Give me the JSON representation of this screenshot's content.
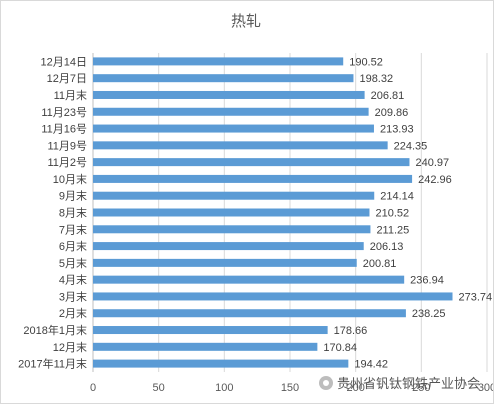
{
  "chart_data": {
    "type": "bar",
    "orientation": "horizontal",
    "title": "热轧",
    "categories": [
      "12月14日",
      "12月7日",
      "11月末",
      "11月23号",
      "11月16号",
      "11月9号",
      "11月2号",
      "10月末",
      "9月末",
      "8月末",
      "7月末",
      "6月末",
      "5月末",
      "4月末",
      "3月末",
      "2月末",
      "2018年1月末",
      "12月末",
      "2017年11月末"
    ],
    "values": [
      190.52,
      198.32,
      206.81,
      209.86,
      213.93,
      224.35,
      240.97,
      242.96,
      214.14,
      210.52,
      211.25,
      206.13,
      200.81,
      236.94,
      273.74,
      238.25,
      178.66,
      170.84,
      194.42
    ],
    "value_labels": [
      "190.52",
      "198.32",
      "206.81",
      "209.86",
      "213.93",
      "224.35",
      "240.97",
      "242.96",
      "214.14",
      "210.52",
      "211.25",
      "206.13",
      "200.81",
      "236.94",
      "273.74",
      "238.25",
      "178.66",
      "170.84",
      "194.42"
    ],
    "xlim": [
      0,
      300
    ],
    "x_ticks": [
      "0",
      "50",
      "100",
      "150",
      "200",
      "250",
      "300"
    ],
    "grid": true,
    "legend": "none",
    "bar_color": "#5b9bd5"
  },
  "watermark": {
    "text": "贵州省钒钛钢铁产业协会",
    "icon": "wechat-official-account-logo"
  }
}
